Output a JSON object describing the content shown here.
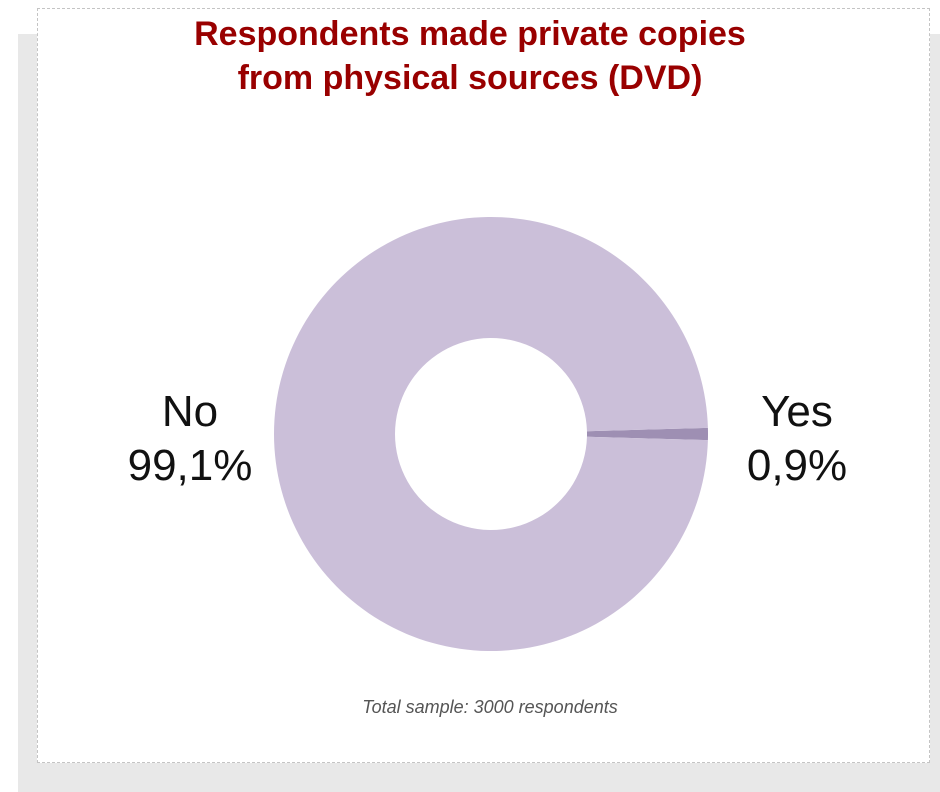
{
  "chart_data": {
    "type": "pie",
    "variant": "donut",
    "title": "Respondents made private copies\nfrom physical sources (DVD)",
    "slices": [
      {
        "label": "No",
        "value": 99.1,
        "value_label": "99,1%",
        "color": "#cbbfd9"
      },
      {
        "label": "Yes",
        "value": 0.9,
        "value_label": "0,9%",
        "color": "#9e8fb3"
      }
    ],
    "note": "Total sample: 3000 respondents",
    "title_color": "#990000",
    "legend": "none"
  }
}
